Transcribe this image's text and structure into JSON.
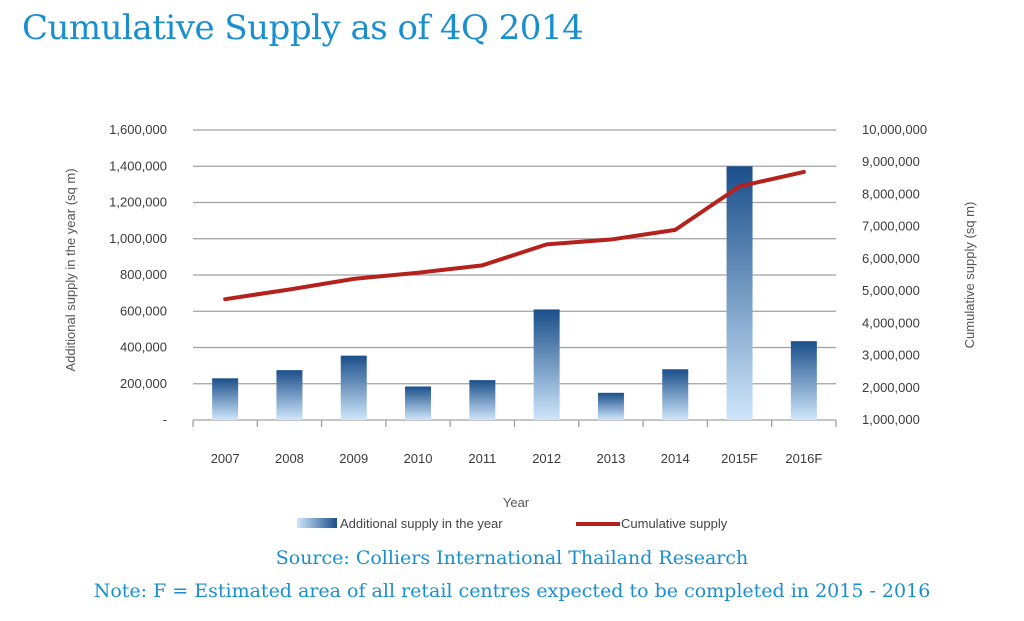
{
  "title": "Cumulative Supply as of 4Q 2014",
  "source": "Source: Colliers International Thailand Research",
  "note": "Note: F = Estimated area of all retail centres expected to be completed in 2015 - 2016",
  "colors": {
    "bar_top": "#1a4f8a",
    "bar_bottom": "#cfe6fb",
    "line": "#b5211d",
    "grid": "#a0a0a0"
  },
  "chart_data": {
    "type": "bar+line",
    "categories": [
      "2007",
      "2008",
      "2009",
      "2010",
      "2011",
      "2012",
      "2013",
      "2014",
      "2015F",
      "2016F"
    ],
    "series": [
      {
        "name": "Additional supply in the year",
        "type": "bar",
        "axis": "left",
        "values": [
          230000,
          275000,
          355000,
          185000,
          220000,
          610000,
          150000,
          280000,
          1400000,
          435000
        ]
      },
      {
        "name": "Cumulative supply",
        "type": "line",
        "axis": "right",
        "values": [
          4750000,
          5050000,
          5380000,
          5570000,
          5800000,
          6450000,
          6600000,
          6900000,
          8250000,
          8700000
        ]
      }
    ],
    "xlabel": "Year",
    "ylabel_left": "Additional supply in the year (sq m)",
    "ylabel_right": "Cumulative supply  (sq m)",
    "ylim_left": [
      0,
      1600000
    ],
    "ylim_right": [
      1000000,
      10000000
    ],
    "yticks_left": [
      "-",
      "200,000",
      "400,000",
      "600,000",
      "800,000",
      "1,000,000",
      "1,200,000",
      "1,400,000",
      "1,600,000"
    ],
    "yticks_right": [
      "1,000,000",
      "2,000,000",
      "3,000,000",
      "4,000,000",
      "5,000,000",
      "6,000,000",
      "7,000,000",
      "8,000,000",
      "9,000,000",
      "10,000,000"
    ],
    "grid": true,
    "legend_position": "bottom"
  }
}
